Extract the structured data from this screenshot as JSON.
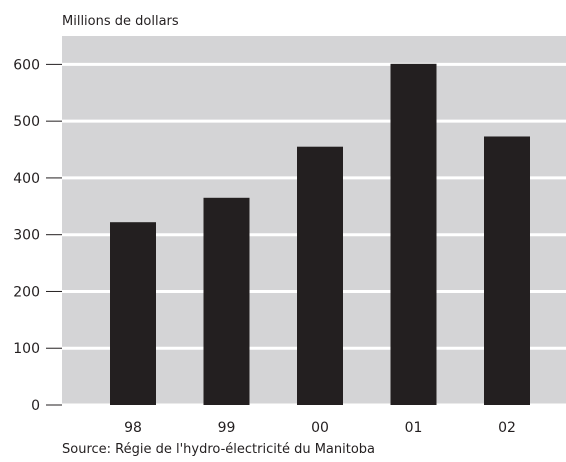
{
  "chart_data": {
    "type": "bar",
    "title": "",
    "units_label": "Millions de dollars",
    "xlabel": "",
    "ylabel": "",
    "categories": [
      "98",
      "99",
      "00",
      "01",
      "02"
    ],
    "values": [
      322,
      365,
      455,
      601,
      473
    ],
    "ylim": [
      0,
      650
    ],
    "yticks": [
      0,
      100,
      200,
      300,
      400,
      500,
      600
    ],
    "grid": true,
    "source": "Source: Régie de l'hydro-électricité du Manitoba",
    "colors": {
      "plot_background": "#d4d4d6",
      "gridline": "#ffffff",
      "bar": "#231f20",
      "text": "#231f20"
    }
  }
}
